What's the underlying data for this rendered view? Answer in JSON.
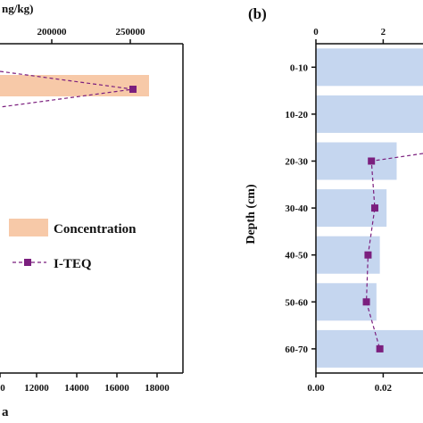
{
  "chart_data": [
    {
      "panel": "left (a)",
      "type": "bar",
      "orientation": "horizontal",
      "top_axis_label_partial": "ng/kg)",
      "top_ticks": [
        "200000",
        "250000"
      ],
      "bottom_ticks": [
        "0",
        "12000",
        "14000",
        "16000",
        "18000"
      ],
      "bottom_panel_label_partial": "a",
      "legend": [
        "Concentration",
        "I-TEQ"
      ],
      "series": [
        {
          "name": "Concentration",
          "values": [
            16700
          ]
        },
        {
          "name": "I-TEQ",
          "values": [
            16000
          ]
        }
      ],
      "colors": {
        "bar": "#f7c9a8",
        "line": "#7b1f7e"
      }
    },
    {
      "panel": "right (b)",
      "panel_label": "(b)",
      "type": "bar",
      "orientation": "horizontal",
      "ylabel": "Depth (cm)",
      "categories": [
        "0-10",
        "10-20",
        "20-30",
        "30-40",
        "40-50",
        "50-60",
        "60-70"
      ],
      "top_ticks": [
        "0",
        "2"
      ],
      "bottom_ticks": [
        "0.00",
        "0.02"
      ],
      "series": [
        {
          "name": "Concentration",
          "values": [
            3.5,
            3.5,
            2.4,
            2.1,
            1.9,
            1.8,
            3.5
          ]
        },
        {
          "name": "I-TEQ",
          "values": [
            0.021,
            null,
            0.0165,
            0.0175,
            0.0155,
            0.015,
            0.019
          ]
        }
      ],
      "top_xlim": [
        0,
        3.3
      ],
      "bottom_xlim": [
        0,
        0.033
      ],
      "colors": {
        "bar": "#c5d6ef",
        "line": "#7b1f7e"
      }
    }
  ]
}
